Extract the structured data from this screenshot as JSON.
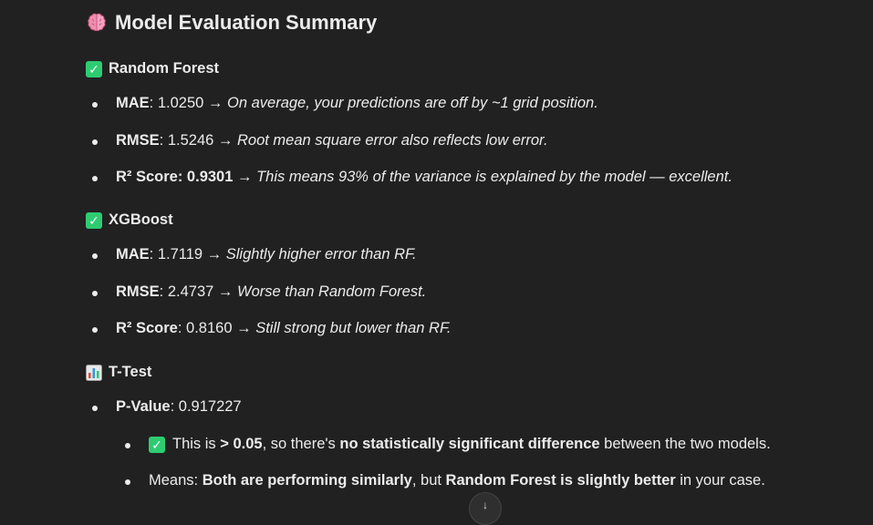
{
  "heading": {
    "title": "Model Evaluation Summary",
    "icon": "brain-icon"
  },
  "sections": {
    "rf": {
      "title": "Random Forest",
      "items": [
        {
          "label": "MAE",
          "value": ": 1.0250 →",
          "note": "On average, your predictions are off by ~1 grid position."
        },
        {
          "label": "RMSE",
          "value": ": 1.5246 →",
          "note": "Root mean square error also reflects low error."
        },
        {
          "label": "R² Score: 0.9301",
          "value": " →",
          "note": "This means 93% of the variance is explained by the model — excellent."
        }
      ]
    },
    "xgb": {
      "title": "XGBoost",
      "items": [
        {
          "label": "MAE",
          "value": ": 1.7119 →",
          "note": "Slightly higher error than RF."
        },
        {
          "label": "RMSE",
          "value": ": 2.4737 →",
          "note": "Worse than Random Forest."
        },
        {
          "label": "R² Score",
          "value": ": 0.8160 →",
          "note": "Still strong but lower than RF."
        }
      ]
    },
    "ttest": {
      "title": "T-Test",
      "pvalue_label": "P-Value",
      "pvalue_text": ": 0.917227",
      "sub1": {
        "a": "This is ",
        "b": "> 0.05",
        "c": ", so there's ",
        "d": "no statistically significant difference",
        "e": " between the two models."
      },
      "sub2": {
        "a": "Means: ",
        "b": "Both are performing similarly",
        "c": ", but ",
        "d": "Random Forest is slightly better",
        "e": " in your case."
      }
    }
  },
  "colors": {
    "background": "#212121",
    "text": "#ececec",
    "check": "#2ecc71"
  }
}
